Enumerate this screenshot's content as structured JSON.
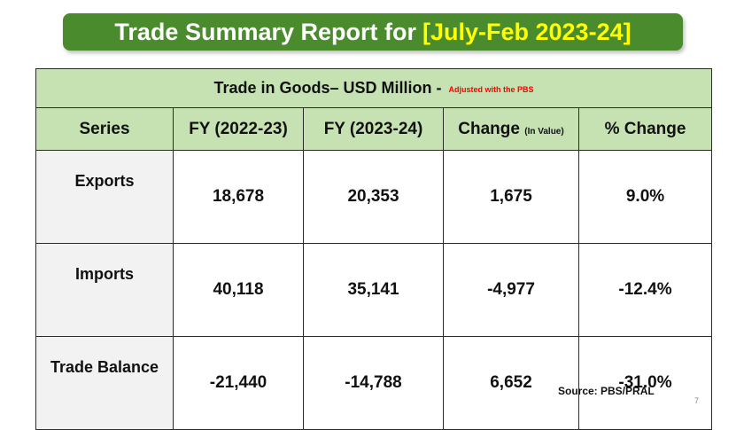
{
  "banner": {
    "title": "Trade Summary Report for",
    "period": "[July-Feb 2023-24]"
  },
  "table": {
    "caption": "Trade in Goods– USD Million -",
    "caption_note": "Adjusted with the PBS",
    "headers": {
      "series": "Series",
      "fy1": "FY (2022-23)",
      "fy2": "FY (2023-24)",
      "change": "Change",
      "change_unit": "(In Value)",
      "pct_change": "% Change"
    },
    "rows": [
      {
        "label": "Exports",
        "fy1": "18,678",
        "fy2": "20,353",
        "change": "1,675",
        "pct": "9.0%"
      },
      {
        "label": "Imports",
        "fy1": "40,118",
        "fy2": "35,141",
        "change": "-4,977",
        "pct": "-12.4%"
      },
      {
        "label": "Trade Balance",
        "fy1": "-21,440",
        "fy2": "-14,788",
        "change": "6,652",
        "pct": "-31.0%"
      }
    ]
  },
  "footer": {
    "source": "Source: PBS/PRAL",
    "page_number": "7"
  },
  "colors": {
    "banner_green": "#4a8b2e",
    "banner_highlight": "#ffff00",
    "header_fill": "#c6e2b3",
    "note_red": "#ff0000"
  }
}
